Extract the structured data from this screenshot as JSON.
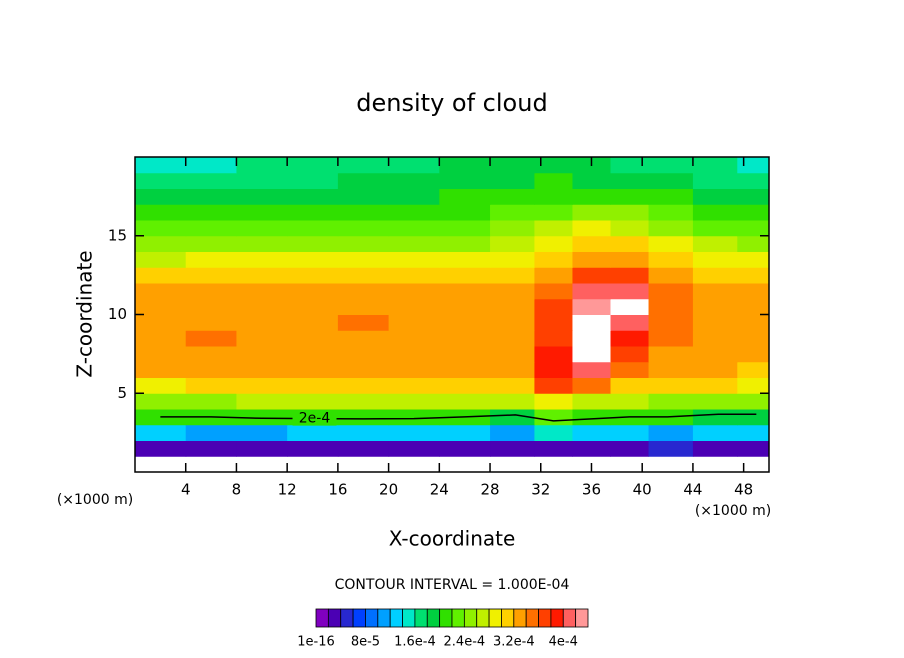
{
  "chart_data": {
    "type": "contour",
    "title": "density of cloud",
    "x_label": "X-coordinate",
    "y_label": "Z-coordinate",
    "x_unit": "(×1000 m)",
    "y_unit": "(×1000 m)",
    "contour_interval": "CONTOUR INTERVAL = 1.000E-04",
    "contour_levels": [
      0.0002
    ],
    "contour_labels": [
      "2e-4"
    ],
    "xlim": [
      0,
      50
    ],
    "ylim": [
      0,
      20
    ],
    "xticks": [
      4,
      8,
      12,
      16,
      20,
      24,
      28,
      32,
      36,
      40,
      44,
      48
    ],
    "yticks": [
      5,
      10,
      15
    ],
    "grid": false,
    "x": [
      2,
      6,
      10,
      14,
      18,
      22,
      26,
      30,
      33,
      36,
      39,
      42,
      46,
      49
    ],
    "y": [
      0.5,
      1.5,
      2.5,
      3.5,
      4.5,
      5.5,
      6.5,
      7.5,
      8.5,
      9.5,
      10.5,
      11.5,
      12.5,
      13.5,
      14.5,
      15.5,
      16.5,
      17.5,
      18.5,
      19.5
    ],
    "z": [
      [
        null,
        null,
        null,
        null,
        null,
        null,
        null,
        null,
        null,
        null,
        null,
        null,
        null,
        null
      ],
      [
        2e-05,
        2e-05,
        3e-05,
        2e-05,
        3e-05,
        2e-05,
        3e-05,
        2e-05,
        3e-05,
        3e-05,
        3e-05,
        4e-05,
        3e-05,
        3e-05
      ],
      [
        0.00012,
        0.00011,
        0.0001,
        0.00012,
        0.00013,
        0.00012,
        0.00012,
        0.0001,
        0.00014,
        0.00013,
        0.00012,
        0.00011,
        0.00012,
        0.00012
      ],
      [
        0.0002,
        0.0002,
        0.00021,
        0.00021,
        0.00021,
        0.00021,
        0.0002,
        0.00019,
        0.00022,
        0.00021,
        0.0002,
        0.0002,
        0.00019,
        0.00019
      ],
      [
        0.00025,
        0.00025,
        0.00026,
        0.00026,
        0.00026,
        0.00026,
        0.00026,
        0.00027,
        0.00028,
        0.00027,
        0.00026,
        0.00025,
        0.00025,
        0.00025
      ],
      [
        0.00029,
        0.0003,
        0.0003,
        0.0003,
        0.0003,
        0.0003,
        0.0003,
        0.0003,
        0.00036,
        0.00034,
        0.00031,
        0.0003,
        0.0003,
        0.00029
      ],
      [
        0.00032,
        0.00032,
        0.00032,
        0.00032,
        0.00032,
        0.00032,
        0.00032,
        0.00032,
        0.00038,
        0.0004,
        0.00034,
        0.00032,
        0.00032,
        0.00031
      ],
      [
        0.00033,
        0.00033,
        0.00033,
        0.00033,
        0.00033,
        0.00033,
        0.00033,
        0.00033,
        0.00038,
        0.00046,
        0.00036,
        0.00033,
        0.00033,
        0.00032
      ],
      [
        0.00033,
        0.00034,
        0.00033,
        0.00033,
        0.00033,
        0.00033,
        0.00033,
        0.00033,
        0.00037,
        0.00046,
        0.00039,
        0.00034,
        0.00033,
        0.00033
      ],
      [
        0.00033,
        0.00033,
        0.00033,
        0.00033,
        0.00034,
        0.00033,
        0.00033,
        0.00033,
        0.00036,
        0.00045,
        0.0004,
        0.00034,
        0.00033,
        0.00033
      ],
      [
        0.00033,
        0.00033,
        0.00033,
        0.00033,
        0.00033,
        0.00033,
        0.00033,
        0.00033,
        0.00036,
        0.00042,
        0.00046,
        0.00035,
        0.00033,
        0.00033
      ],
      [
        0.00032,
        0.00032,
        0.00032,
        0.00032,
        0.00032,
        0.00032,
        0.00032,
        0.00032,
        0.00035,
        0.0004,
        0.00041,
        0.00035,
        0.00033,
        0.00032
      ],
      [
        0.0003,
        0.0003,
        0.0003,
        0.00031,
        0.00031,
        0.00031,
        0.00031,
        0.00031,
        0.00033,
        0.00036,
        0.00036,
        0.00033,
        0.00031,
        0.0003
      ],
      [
        0.00027,
        0.00028,
        0.00028,
        0.00028,
        0.00028,
        0.00028,
        0.00028,
        0.00029,
        0.00031,
        0.00033,
        0.00033,
        0.00031,
        0.00029,
        0.00028
      ],
      [
        0.00025,
        0.00025,
        0.00025,
        0.00025,
        0.00025,
        0.00025,
        0.00025,
        0.00026,
        0.00028,
        0.0003,
        0.0003,
        0.00028,
        0.00026,
        0.00025
      ],
      [
        0.00022,
        0.00022,
        0.00022,
        0.00022,
        0.00022,
        0.00023,
        0.00023,
        0.00024,
        0.00026,
        0.00028,
        0.00027,
        0.00025,
        0.00023,
        0.00022
      ],
      [
        0.0002,
        0.0002,
        0.0002,
        0.0002,
        0.0002,
        0.00021,
        0.00021,
        0.00022,
        0.00023,
        0.00024,
        0.00024,
        0.00022,
        0.00021,
        0.0002
      ],
      [
        0.00018,
        0.00018,
        0.00018,
        0.00018,
        0.00019,
        0.00019,
        0.0002,
        0.00021,
        0.00021,
        0.00021,
        0.00021,
        0.0002,
        0.00019,
        0.00018
      ],
      [
        0.00016,
        0.00016,
        0.00017,
        0.00017,
        0.00018,
        0.00018,
        0.00019,
        0.00019,
        0.0002,
        0.00019,
        0.00019,
        0.00018,
        0.00017,
        0.00016
      ],
      [
        0.00015,
        0.00015,
        0.00016,
        0.00016,
        0.00017,
        0.00017,
        0.00018,
        0.00018,
        0.00018,
        0.00018,
        0.00017,
        0.00016,
        0.00016,
        0.00015
      ]
    ],
    "levels": [
      0,
      2e-05,
      4e-05,
      6e-05,
      8e-05,
      0.0001,
      0.00012,
      0.00014,
      0.00016,
      0.00018,
      0.0002,
      0.00022,
      0.00024,
      0.00026,
      0.00028,
      0.0003,
      0.00032,
      0.00034,
      0.00036,
      0.00038,
      0.0004,
      0.00042,
      0.00044
    ],
    "colors": [
      "#8000c0",
      "#4b00b4",
      "#2828d0",
      "#0040ff",
      "#0070ff",
      "#00a0ff",
      "#00d0ff",
      "#00e8c8",
      "#00e070",
      "#00d040",
      "#30e000",
      "#60f000",
      "#90f000",
      "#c0f000",
      "#f0f000",
      "#ffd000",
      "#ffa000",
      "#ff7000",
      "#ff4000",
      "#ff1a00",
      "#ff6060",
      "#ff9898"
    ],
    "colorbar_ticks": [
      {
        "value": 1e-16,
        "label": "1e-16"
      },
      {
        "value": 8e-05,
        "label": "8e-5"
      },
      {
        "value": 0.00016,
        "label": "1.6e-4"
      },
      {
        "value": 0.00024,
        "label": "2.4e-4"
      },
      {
        "value": 0.00032,
        "label": "3.2e-4"
      },
      {
        "value": 0.0004,
        "label": "4e-4"
      }
    ]
  }
}
